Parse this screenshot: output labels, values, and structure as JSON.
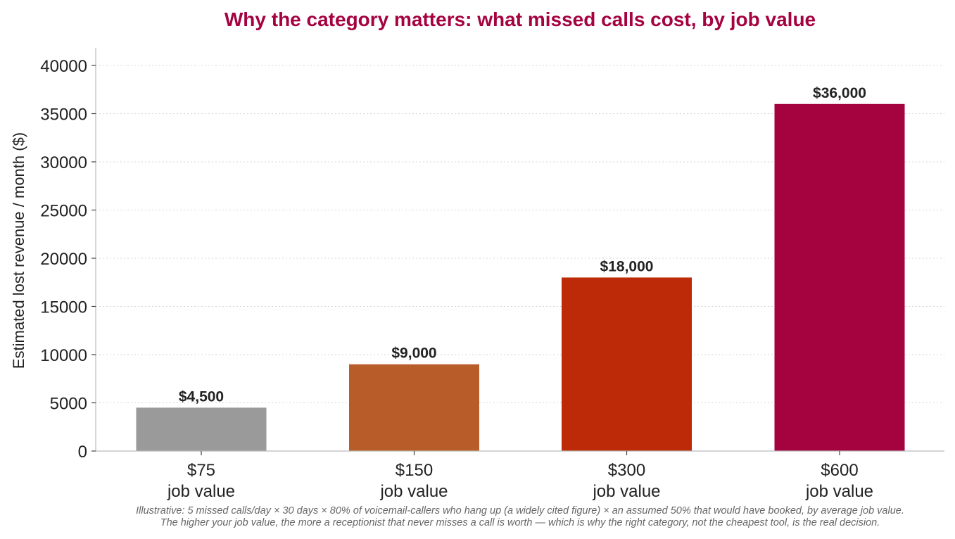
{
  "chart_data": {
    "type": "bar",
    "title": "Why the category matters: what missed calls cost, by job value",
    "xlabel": "",
    "ylabel": "Estimated lost revenue / month ($)",
    "categories": [
      "$75\njob value",
      "$150\njob value",
      "$300\njob value",
      "$600\njob value"
    ],
    "values": [
      4500,
      9000,
      18000,
      36000
    ],
    "data_labels": [
      "$4,500",
      "$9,000",
      "$18,000",
      "$36,000"
    ],
    "bar_colors": [
      "#9a9a9a",
      "#b85c29",
      "#bc2a08",
      "#a50240"
    ],
    "title_color": "#a50240",
    "ylim": [
      0,
      42000
    ],
    "yticks": [
      0,
      5000,
      10000,
      15000,
      20000,
      25000,
      30000,
      35000,
      40000
    ],
    "grid": "horizontal dotted",
    "legend": "none"
  },
  "footnote": [
    "Illustrative: 5 missed calls/day × 30 days × 80% of voicemail-callers who hang up (a widely cited figure) × an assumed 50% that would have booked, by average job value.",
    "The higher your job value, the more a receptionist that never misses a call is worth — which is why the right category, not the cheapest tool, is the real decision."
  ]
}
